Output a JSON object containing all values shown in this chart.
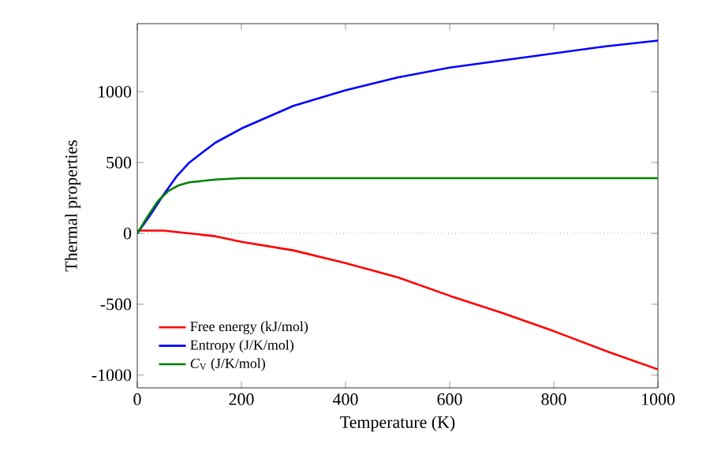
{
  "chart_data": {
    "type": "line",
    "xlabel": "Temperature (K)",
    "ylabel": "Thermal properties",
    "xlim": [
      0,
      1000
    ],
    "ylim": [
      -1090,
      1480
    ],
    "xticks": [
      0,
      200,
      400,
      600,
      800,
      1000
    ],
    "yticks": [
      -1000,
      -500,
      0,
      500,
      1000
    ],
    "legend": "bottom left",
    "grid": false,
    "marker": "none",
    "line_style": "solid",
    "ref_lines": [
      {
        "axis": "y",
        "value": 0,
        "color": "#000000",
        "line_style": "dotted"
      }
    ],
    "series": [
      {
        "name": "Free energy (kJ/mol)",
        "color": "#ff0000",
        "x": [
          0,
          50,
          100,
          150,
          200,
          300,
          400,
          500,
          600,
          700,
          800,
          900,
          1000
        ],
        "values": [
          20,
          20,
          0,
          -20,
          -60,
          -120,
          -210,
          -310,
          -440,
          -560,
          -690,
          -830,
          -960
        ]
      },
      {
        "name": "Entropy (J/K/mol)",
        "color": "#0000ff",
        "x": [
          0,
          25,
          50,
          75,
          100,
          150,
          200,
          300,
          400,
          500,
          600,
          700,
          800,
          900,
          1000
        ],
        "values": [
          0,
          130,
          270,
          400,
          500,
          640,
          740,
          900,
          1010,
          1100,
          1170,
          1220,
          1270,
          1320,
          1360
        ]
      },
      {
        "name": "*C*$_{V}$ (J/K/mol)",
        "color": "#008000",
        "x": [
          0,
          20,
          40,
          60,
          80,
          100,
          150,
          200,
          300,
          500,
          1000
        ],
        "values": [
          0,
          120,
          230,
          300,
          340,
          360,
          380,
          390,
          390,
          390,
          390
        ]
      }
    ]
  }
}
